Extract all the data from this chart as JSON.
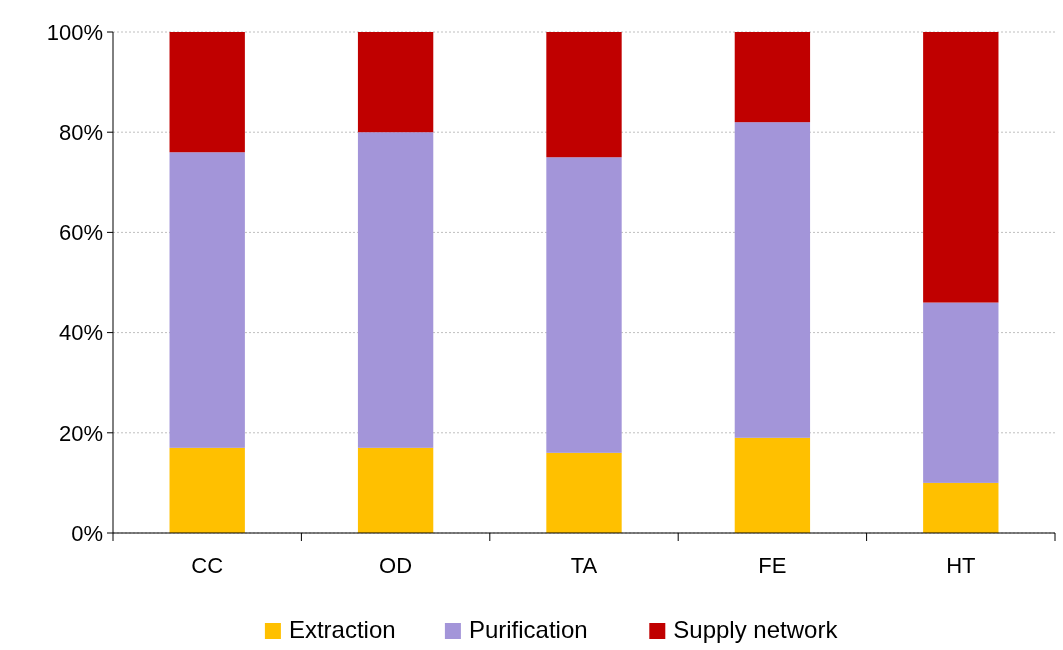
{
  "chart_data": {
    "type": "bar",
    "stacked": true,
    "categories": [
      "CC",
      "OD",
      "TA",
      "FE",
      "HT"
    ],
    "series": [
      {
        "name": "Extraction",
        "color": "#ffc000",
        "values": [
          17,
          17,
          16,
          19,
          10
        ]
      },
      {
        "name": "Purification",
        "color": "#a395d9",
        "values": [
          59,
          63,
          59,
          63,
          36
        ]
      },
      {
        "name": "Supply network",
        "color": "#c00000",
        "values": [
          24,
          20,
          25,
          18,
          54
        ]
      }
    ],
    "ylim": [
      0,
      100
    ],
    "yticks": [
      {
        "value": 0,
        "label": "0%"
      },
      {
        "value": 20,
        "label": "20%"
      },
      {
        "value": 40,
        "label": "40%"
      },
      {
        "value": 60,
        "label": "60%"
      },
      {
        "value": 80,
        "label": "80%"
      },
      {
        "value": 100,
        "label": "100%"
      }
    ],
    "grid": "y",
    "legend": "bottom"
  }
}
